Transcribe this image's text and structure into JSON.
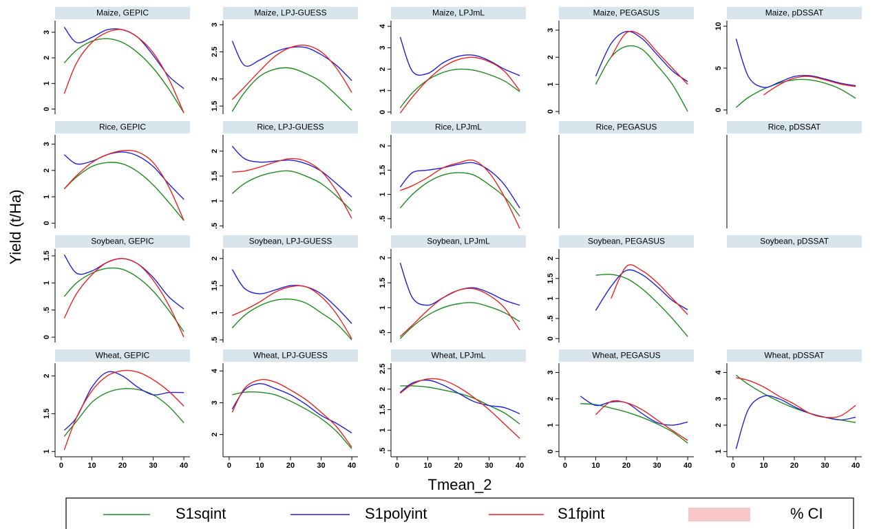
{
  "chart_data": {
    "type": "line",
    "xlabel": "Tmean_2",
    "ylabel": "Yield (t/Ha)",
    "x": [
      1,
      5,
      10,
      15,
      20,
      25,
      30,
      35,
      40
    ],
    "xlim": [
      -2,
      42
    ],
    "xticks": [
      0,
      10,
      20,
      30,
      40
    ],
    "legend": [
      {
        "name": "S1sqint",
        "color": "#1f8a1f"
      },
      {
        "name": "S1polyint",
        "color": "#2020d8"
      },
      {
        "name": "S1fpint",
        "color": "#e82222"
      },
      {
        "name": "% CI",
        "color": "#f8c8c8"
      }
    ],
    "panels": [
      {
        "title": "Maize, GEPIC",
        "ylim": [
          -0.2,
          3.4
        ],
        "yticks": [
          0,
          1,
          2,
          3
        ],
        "series": [
          {
            "values": [
              1.8,
              2.3,
              2.65,
              2.75,
              2.6,
              2.2,
              1.6,
              0.8,
              -0.15
            ]
          },
          {
            "values": [
              3.2,
              2.6,
              2.8,
              3.1,
              3.1,
              2.8,
              2.1,
              1.3,
              0.8
            ]
          },
          {
            "values": [
              0.6,
              1.8,
              2.6,
              3.0,
              3.1,
              2.8,
              2.2,
              1.2,
              -0.15
            ]
          }
        ]
      },
      {
        "title": "Maize, LPJ-GUESS",
        "ylim": [
          1.35,
          3.05
        ],
        "yticks": [
          1.5,
          2,
          2.5,
          3
        ],
        "series": [
          {
            "values": [
              1.4,
              1.75,
              2.05,
              2.18,
              2.2,
              2.1,
              1.95,
              1.7,
              1.42
            ]
          },
          {
            "values": [
              2.7,
              2.25,
              2.35,
              2.5,
              2.58,
              2.58,
              2.45,
              2.25,
              1.97
            ]
          },
          {
            "values": [
              1.62,
              1.85,
              2.15,
              2.42,
              2.58,
              2.62,
              2.5,
              2.2,
              1.75
            ]
          }
        ]
      },
      {
        "title": "Maize, LPJmL",
        "ylim": [
          -0.1,
          4.2
        ],
        "yticks": [
          0,
          1,
          2,
          3,
          4
        ],
        "series": [
          {
            "values": [
              0.2,
              0.9,
              1.5,
              1.85,
              2.0,
              1.95,
              1.75,
              1.45,
              0.95
            ]
          },
          {
            "values": [
              3.5,
              1.9,
              1.8,
              2.3,
              2.6,
              2.65,
              2.4,
              2.0,
              1.7
            ]
          },
          {
            "values": [
              -0.05,
              0.7,
              1.5,
              2.1,
              2.45,
              2.55,
              2.35,
              1.9,
              1.0
            ]
          }
        ]
      },
      {
        "title": "Maize, PEGASUS",
        "ylim": [
          -0.1,
          3.3
        ],
        "yticks": [
          0,
          1,
          2,
          3
        ],
        "series": [
          {
            "values": [
              null,
              null,
              1.0,
              2.0,
              2.4,
              2.3,
              1.7,
              1.0,
              0.0
            ]
          },
          {
            "values": [
              null,
              null,
              1.3,
              2.5,
              2.95,
              2.7,
              2.1,
              1.5,
              1.1
            ]
          },
          {
            "values": [
              null,
              null,
              null,
              2.0,
              2.9,
              2.8,
              2.2,
              1.6,
              1.0
            ]
          }
        ]
      },
      {
        "title": "Maize, pDSSAT",
        "ylim": [
          -0.5,
          10.5
        ],
        "yticks": [
          0,
          5,
          10
        ],
        "series": [
          {
            "values": [
              0.3,
              1.5,
              2.5,
              3.2,
              3.6,
              3.6,
              3.2,
              2.5,
              1.4
            ]
          },
          {
            "values": [
              8.5,
              4.0,
              2.7,
              3.3,
              4.0,
              4.1,
              3.7,
              3.2,
              2.9
            ]
          },
          {
            "values": [
              null,
              null,
              1.8,
              3.0,
              3.8,
              4.0,
              3.6,
              3.1,
              2.8
            ]
          }
        ]
      },
      {
        "title": "Rice, GEPIC",
        "ylim": [
          -0.2,
          3.3
        ],
        "yticks": [
          0,
          1,
          2,
          3
        ],
        "series": [
          {
            "values": [
              1.3,
              1.75,
              2.15,
              2.3,
              2.25,
              1.95,
              1.45,
              0.8,
              0.1
            ]
          },
          {
            "values": [
              2.6,
              2.25,
              2.35,
              2.6,
              2.7,
              2.55,
              2.15,
              1.5,
              0.9
            ]
          },
          {
            "values": [
              1.3,
              1.8,
              2.3,
              2.6,
              2.75,
              2.7,
              2.3,
              1.4,
              0.1
            ]
          }
        ]
      },
      {
        "title": "Rice, LPJ-GUESS",
        "ylim": [
          0.45,
          2.3
        ],
        "yticks": [
          {
            "value": 0.5,
            "label": ".5"
          },
          1,
          1.5,
          2
        ],
        "series": [
          {
            "values": [
              1.15,
              1.35,
              1.5,
              1.58,
              1.6,
              1.5,
              1.35,
              1.1,
              0.8
            ]
          },
          {
            "values": [
              2.1,
              1.85,
              1.78,
              1.8,
              1.82,
              1.75,
              1.6,
              1.35,
              1.08
            ]
          },
          {
            "values": [
              1.58,
              1.6,
              1.68,
              1.78,
              1.85,
              1.8,
              1.6,
              1.2,
              0.65
            ]
          }
        ]
      },
      {
        "title": "Rice, LPJmL",
        "ylim": [
          0.3,
          2.2
        ],
        "yticks": [
          {
            "value": 0.5,
            "label": ".5"
          },
          1,
          1.5,
          2
        ],
        "series": [
          {
            "values": [
              0.72,
              1.0,
              1.25,
              1.4,
              1.45,
              1.4,
              1.2,
              0.95,
              0.55
            ]
          },
          {
            "values": [
              1.15,
              1.45,
              1.5,
              1.55,
              1.62,
              1.65,
              1.5,
              1.2,
              0.72
            ]
          },
          {
            "values": [
              1.08,
              1.18,
              1.35,
              1.55,
              1.65,
              1.7,
              1.45,
              0.95,
              0.3
            ]
          }
        ]
      },
      {
        "title": "Rice, PEGASUS",
        "y_axis_line": true
      },
      {
        "title": "Rice, pDSSAT",
        "y_axis_line": true
      },
      {
        "title": "Soybean, GEPIC",
        "ylim": [
          -0.1,
          1.6
        ],
        "yticks": [
          0,
          {
            "value": 0.5,
            "label": ".5"
          },
          1,
          1.5
        ],
        "series": [
          {
            "values": [
              0.75,
              1.0,
              1.18,
              1.27,
              1.25,
              1.1,
              0.85,
              0.5,
              0.1
            ]
          },
          {
            "values": [
              1.52,
              1.18,
              1.22,
              1.38,
              1.45,
              1.35,
              1.1,
              0.75,
              0.52
            ]
          },
          {
            "values": [
              0.35,
              0.8,
              1.15,
              1.38,
              1.45,
              1.35,
              1.05,
              0.6,
              0.0
            ]
          }
        ]
      },
      {
        "title": "Soybean, LPJ-GUESS",
        "ylim": [
          0.45,
          2.15
        ],
        "yticks": [
          {
            "value": 0.5,
            "label": ".5"
          },
          1,
          1.5,
          2
        ],
        "series": [
          {
            "values": [
              0.72,
              0.95,
              1.13,
              1.23,
              1.25,
              1.18,
              1.0,
              0.8,
              0.5
            ]
          },
          {
            "values": [
              1.8,
              1.45,
              1.35,
              1.42,
              1.5,
              1.48,
              1.35,
              1.1,
              0.8
            ]
          },
          {
            "values": [
              0.95,
              1.05,
              1.2,
              1.38,
              1.48,
              1.48,
              1.3,
              0.98,
              0.52
            ]
          }
        ]
      },
      {
        "title": "Soybean, LPJmL",
        "ylim": [
          0.3,
          2.15
        ],
        "yticks": [
          {
            "value": 0.5,
            "label": ".5"
          },
          1,
          1.5,
          2
        ],
        "series": [
          {
            "values": [
              0.38,
              0.62,
              0.85,
              1.0,
              1.08,
              1.1,
              1.02,
              0.9,
              0.72
            ]
          },
          {
            "values": [
              1.9,
              1.2,
              1.05,
              1.2,
              1.35,
              1.4,
              1.3,
              1.15,
              1.05
            ]
          },
          {
            "values": [
              0.42,
              0.65,
              0.95,
              1.2,
              1.35,
              1.38,
              1.25,
              1.0,
              0.55
            ]
          }
        ]
      },
      {
        "title": "Soybean, PEGASUS",
        "ylim": [
          -0.1,
          2.2
        ],
        "yticks": [
          0,
          {
            "value": 0.5,
            "label": ".5"
          },
          1,
          1.5,
          2
        ],
        "series": [
          {
            "values": [
              null,
              null,
              1.58,
              1.6,
              1.5,
              1.25,
              0.9,
              0.5,
              0.05
            ]
          },
          {
            "values": [
              null,
              null,
              0.7,
              1.3,
              1.7,
              1.6,
              1.3,
              0.95,
              0.72
            ]
          },
          {
            "values": [
              null,
              null,
              null,
              1.0,
              1.8,
              1.7,
              1.4,
              1.0,
              0.6
            ]
          }
        ]
      },
      {
        "title": "Soybean, pDSSAT"
      },
      {
        "title": "Wheat, GEPIC",
        "ylim": [
          0.93,
          2.15
        ],
        "yticks": [
          1,
          1.5,
          2
        ],
        "series": [
          {
            "values": [
              1.2,
              1.4,
              1.65,
              1.78,
              1.83,
              1.82,
              1.75,
              1.6,
              1.38
            ]
          },
          {
            "values": [
              1.28,
              1.45,
              1.85,
              2.05,
              2.0,
              1.85,
              1.75,
              1.78,
              1.78
            ]
          },
          {
            "values": [
              1.02,
              1.45,
              1.8,
              2.0,
              2.07,
              2.05,
              1.95,
              1.8,
              1.6
            ]
          }
        ]
      },
      {
        "title": "Wheat, LPJ-GUESS",
        "ylim": [
          1.3,
          4.2
        ],
        "yticks": [
          2,
          3,
          4
        ],
        "series": [
          {
            "values": [
              3.25,
              3.33,
              3.33,
              3.25,
              3.05,
              2.8,
              2.5,
              2.1,
              1.55
            ]
          },
          {
            "values": [
              2.8,
              3.4,
              3.6,
              3.45,
              3.25,
              2.95,
              2.6,
              2.35,
              2.05
            ]
          },
          {
            "values": [
              2.7,
              3.45,
              3.72,
              3.65,
              3.4,
              3.1,
              2.7,
              2.25,
              1.6
            ]
          }
        ]
      },
      {
        "title": "Wheat, LPJmL",
        "ylim": [
          0.35,
          2.6
        ],
        "yticks": [
          {
            "value": 0.5,
            "label": ".5"
          },
          1,
          1.5,
          2,
          2.5
        ],
        "series": [
          {
            "values": [
              2.08,
              2.08,
              2.05,
              1.98,
              1.9,
              1.78,
              1.6,
              1.42,
              1.15
            ]
          },
          {
            "values": [
              1.92,
              2.15,
              2.22,
              2.1,
              1.9,
              1.7,
              1.6,
              1.55,
              1.4
            ]
          },
          {
            "values": [
              1.9,
              2.12,
              2.25,
              2.22,
              2.05,
              1.8,
              1.5,
              1.15,
              0.8
            ]
          }
        ]
      },
      {
        "title": "Wheat, PEGASUS",
        "ylim": [
          -0.2,
          3.3
        ],
        "yticks": [
          0,
          1,
          2,
          3
        ],
        "series": [
          {
            "values": [
              null,
              1.82,
              1.78,
              1.65,
              1.5,
              1.3,
              1.05,
              0.75,
              0.32
            ]
          },
          {
            "values": [
              null,
              2.1,
              1.75,
              1.88,
              1.85,
              1.45,
              1.1,
              1.0,
              1.12
            ]
          },
          {
            "values": [
              null,
              null,
              1.4,
              1.9,
              1.85,
              1.6,
              1.2,
              0.8,
              0.42
            ]
          }
        ]
      },
      {
        "title": "Wheat, pDSSAT",
        "ylim": [
          0.8,
          4.3
        ],
        "yticks": [
          1,
          2,
          3,
          4
        ],
        "series": [
          {
            "values": [
              3.9,
              3.55,
              3.2,
              2.9,
              2.65,
              2.45,
              2.3,
              2.2,
              2.1
            ]
          },
          {
            "values": [
              1.1,
              2.6,
              3.1,
              3.0,
              2.7,
              2.45,
              2.3,
              2.2,
              2.3
            ]
          },
          {
            "values": [
              3.8,
              3.7,
              3.45,
              3.1,
              2.8,
              2.45,
              2.3,
              2.35,
              2.75
            ]
          }
        ]
      }
    ]
  }
}
